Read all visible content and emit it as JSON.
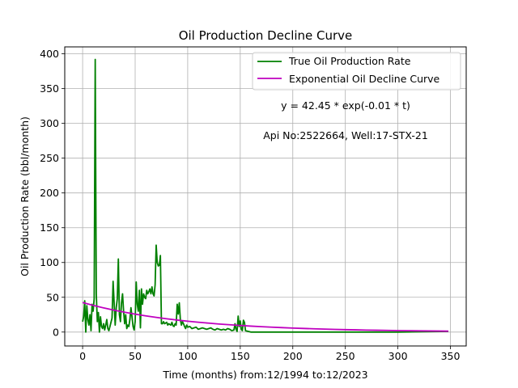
{
  "chart_data": {
    "type": "line",
    "title": "Oil Production Decline Curve",
    "xlabel": "Time (months) from:12/1994 to:12/2023",
    "ylabel": "Oil Production Rate (bbl/month)",
    "xlim": [
      -17,
      365
    ],
    "ylim": [
      -20,
      410
    ],
    "xticks": [
      0,
      50,
      100,
      150,
      200,
      250,
      300,
      350
    ],
    "yticks": [
      0,
      50,
      100,
      150,
      200,
      250,
      300,
      350,
      400
    ],
    "grid": true,
    "legend_position": "top-right",
    "annotations": [
      "y = 42.45 * exp(-0.01 * t)",
      "Api No:2522664, Well:17-STX-21"
    ],
    "series": [
      {
        "name": "True Oil Production Rate",
        "color": "#008000",
        "x": [
          0,
          1,
          2,
          3,
          4,
          5,
          6,
          7,
          8,
          9,
          10,
          11,
          12,
          13,
          14,
          15,
          16,
          17,
          18,
          19,
          20,
          21,
          22,
          23,
          24,
          25,
          26,
          27,
          28,
          29,
          30,
          31,
          32,
          33,
          34,
          35,
          36,
          37,
          38,
          39,
          40,
          41,
          42,
          43,
          44,
          45,
          46,
          47,
          48,
          49,
          50,
          51,
          52,
          53,
          54,
          55,
          56,
          57,
          58,
          59,
          60,
          61,
          62,
          63,
          64,
          65,
          66,
          67,
          68,
          69,
          70,
          71,
          72,
          73,
          74,
          75,
          76,
          77,
          78,
          79,
          80,
          81,
          82,
          83,
          84,
          85,
          86,
          87,
          88,
          89,
          90,
          91,
          92,
          93,
          94,
          95,
          96,
          97,
          98,
          99,
          100,
          102,
          104,
          106,
          108,
          110,
          112,
          114,
          116,
          118,
          120,
          122,
          124,
          126,
          128,
          130,
          132,
          134,
          136,
          138,
          140,
          142,
          144,
          145,
          146,
          147,
          148,
          149,
          150,
          151,
          152,
          153,
          154,
          155,
          160,
          200,
          250,
          300,
          348
        ],
        "values": [
          15,
          22,
          45,
          0,
          38,
          18,
          10,
          25,
          2,
          40,
          30,
          48,
          392,
          55,
          15,
          28,
          0,
          22,
          8,
          5,
          12,
          3,
          10,
          18,
          5,
          2,
          8,
          14,
          20,
          73,
          42,
          10,
          35,
          48,
          105,
          25,
          15,
          42,
          55,
          30,
          12,
          25,
          5,
          10,
          8,
          18,
          35,
          22,
          8,
          3,
          15,
          72,
          40,
          30,
          60,
          6,
          62,
          40,
          55,
          50,
          48,
          60,
          55,
          58,
          62,
          55,
          65,
          55,
          52,
          68,
          125,
          100,
          95,
          96,
          110,
          12,
          12,
          15,
          12,
          13,
          14,
          10,
          12,
          11,
          10,
          14,
          9,
          8,
          12,
          10,
          40,
          26,
          42,
          18,
          10,
          15,
          12,
          8,
          5,
          10,
          7,
          8,
          5,
          6,
          7,
          4,
          5,
          6,
          5,
          4,
          5,
          6,
          4,
          3,
          5,
          4,
          3,
          4,
          3,
          5,
          4,
          2,
          3,
          12,
          4,
          1,
          23,
          8,
          16,
          4,
          2,
          17,
          14,
          2,
          0,
          0,
          0,
          0,
          1
        ]
      },
      {
        "name": "Exponential Oil Decline Curve",
        "color": "#bf00bf",
        "x": [
          0,
          10,
          20,
          30,
          40,
          50,
          60,
          70,
          80,
          90,
          100,
          110,
          120,
          130,
          140,
          150,
          160,
          170,
          180,
          190,
          200,
          210,
          220,
          230,
          240,
          250,
          260,
          270,
          280,
          290,
          300,
          310,
          320,
          330,
          340,
          348
        ],
        "values": [
          42.45,
          38.41,
          34.75,
          31.45,
          28.46,
          25.75,
          23.3,
          21.08,
          19.07,
          17.26,
          15.62,
          14.13,
          12.79,
          11.57,
          10.47,
          9.47,
          8.57,
          7.76,
          7.02,
          6.35,
          5.75,
          5.2,
          4.7,
          4.26,
          3.85,
          3.49,
          3.15,
          2.85,
          2.58,
          2.34,
          2.11,
          1.91,
          1.73,
          1.57,
          1.42,
          1.3
        ]
      }
    ]
  }
}
